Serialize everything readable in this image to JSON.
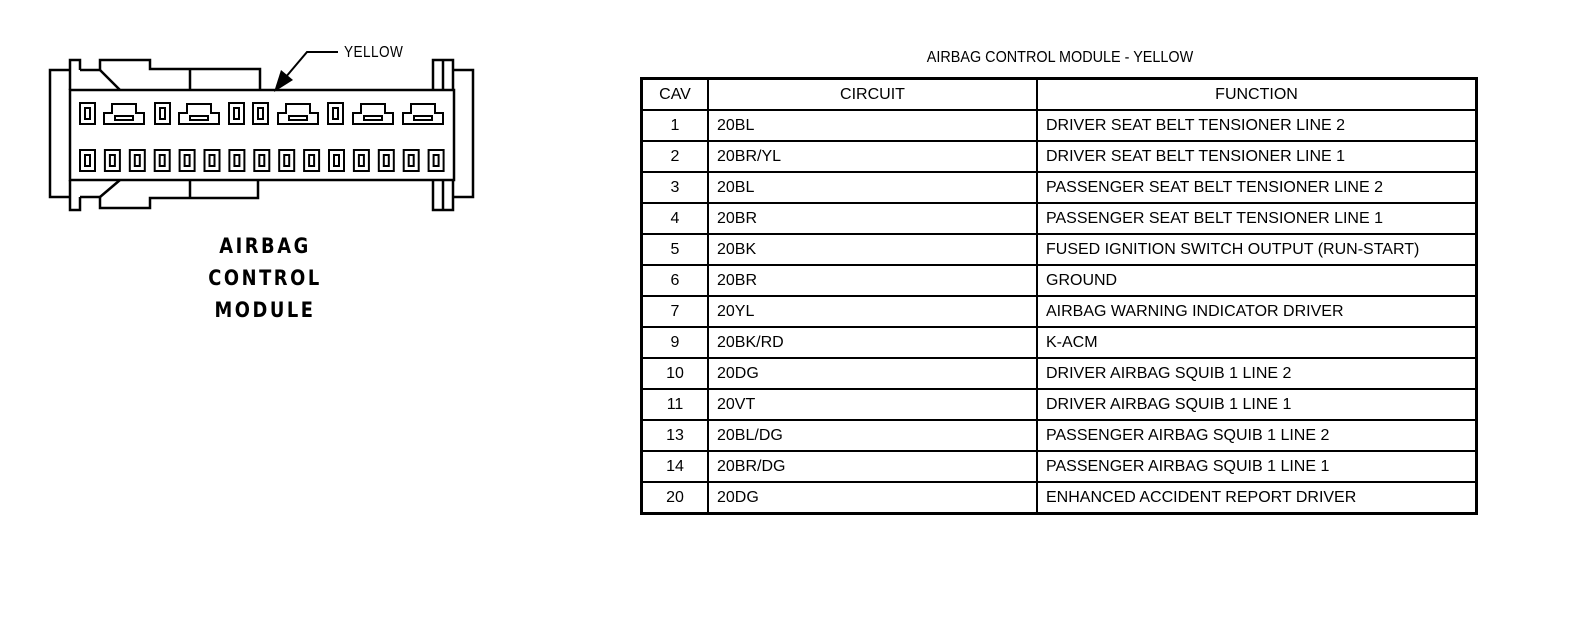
{
  "connector": {
    "color_label": "YELLOW",
    "name_lines": [
      "AIRBAG",
      "CONTROL",
      "MODULE"
    ]
  },
  "table": {
    "title": "AIRBAG CONTROL MODULE - YELLOW",
    "headers": {
      "cav": "CAV",
      "circuit": "CIRCUIT",
      "function": "FUNCTION"
    },
    "rows": [
      {
        "cav": "1",
        "circuit": "20BL",
        "function": "DRIVER SEAT BELT TENSIONER LINE 2"
      },
      {
        "cav": "2",
        "circuit": "20BR/YL",
        "function": "DRIVER SEAT BELT TENSIONER LINE 1"
      },
      {
        "cav": "3",
        "circuit": "20BL",
        "function": "PASSENGER SEAT BELT TENSIONER LINE 2"
      },
      {
        "cav": "4",
        "circuit": "20BR",
        "function": "PASSENGER SEAT BELT TENSIONER LINE 1"
      },
      {
        "cav": "5",
        "circuit": "20BK",
        "function": "FUSED IGNITION SWITCH OUTPUT (RUN-START)"
      },
      {
        "cav": "6",
        "circuit": "20BR",
        "function": "GROUND"
      },
      {
        "cav": "7",
        "circuit": "20YL",
        "function": "AIRBAG WARNING INDICATOR DRIVER"
      },
      {
        "cav": "9",
        "circuit": "20BK/RD",
        "function": "K-ACM"
      },
      {
        "cav": "10",
        "circuit": "20DG",
        "function": "DRIVER AIRBAG SQUIB 1 LINE 2"
      },
      {
        "cav": "11",
        "circuit": "20VT",
        "function": "DRIVER AIRBAG SQUIB 1 LINE 1"
      },
      {
        "cav": "13",
        "circuit": "20BL/DG",
        "function": "PASSENGER AIRBAG SQUIB 1 LINE 2"
      },
      {
        "cav": "14",
        "circuit": "20BR/DG",
        "function": "PASSENGER AIRBAG SQUIB 1 LINE 1"
      },
      {
        "cav": "20",
        "circuit": "20DG",
        "function": "ENHANCED ACCIDENT REPORT DRIVER"
      }
    ]
  }
}
